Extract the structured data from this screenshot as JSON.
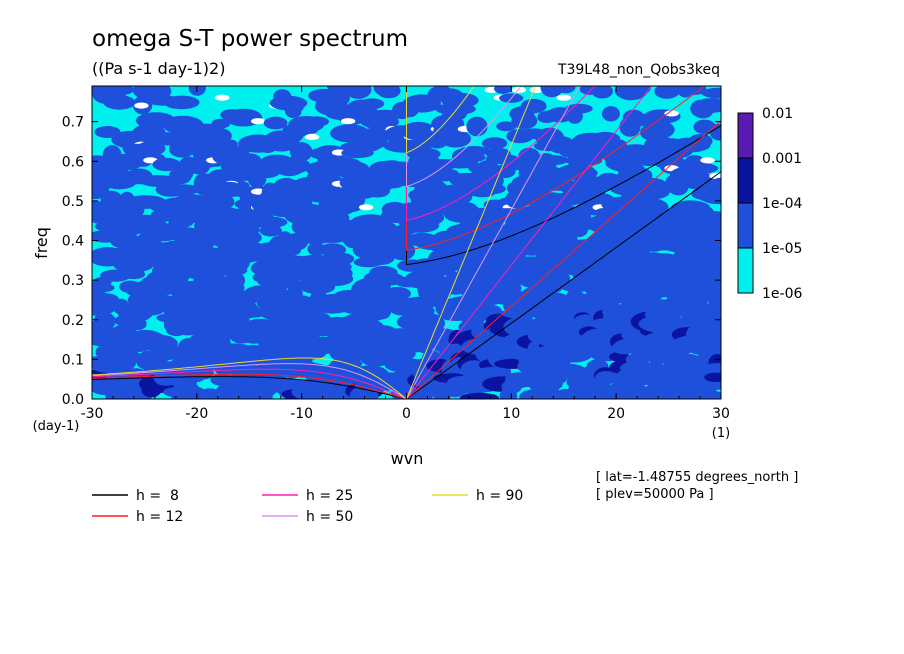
{
  "chart_data": {
    "type": "heatmap",
    "title": "omega S-T power spectrum",
    "subtitle": "((Pa s-1 day-1)2)",
    "run_label": "T39L48_non_Qobs3keq",
    "xlabel": "wvn",
    "ylabel": "freq",
    "x_unit": "(1)",
    "y_unit": "(day-1)",
    "xlim": [
      -30,
      30
    ],
    "ylim": [
      0.0,
      0.79
    ],
    "xticks": [
      -30,
      -20,
      -10,
      0,
      10,
      20,
      30
    ],
    "xtick_labels": [
      "-30",
      "-20",
      "-10",
      "0",
      "10",
      "20",
      "30"
    ],
    "yticks": [
      0.0,
      0.1,
      0.2,
      0.3,
      0.4,
      0.5,
      0.6,
      0.7
    ],
    "ytick_labels": [
      "0.0",
      "0.1",
      "0.2",
      "0.3",
      "0.4",
      "0.5",
      "0.6",
      "0.7"
    ],
    "colorbar": {
      "levels": [
        "0.01",
        "0.001",
        "1e-04",
        "1e-05",
        "1e-06"
      ],
      "colors": [
        "#5a1ab4",
        "#0a14a0",
        "#1e50dc",
        "#00f0f0"
      ]
    },
    "dispersion_curves": [
      {
        "name": "h =  8",
        "h": 8,
        "color": "#000000"
      },
      {
        "name": "h = 12",
        "h": 12,
        "color": "#ff2020"
      },
      {
        "name": "h = 25",
        "h": 25,
        "color": "#ff1eb4"
      },
      {
        "name": "h = 50",
        "h": 50,
        "color": "#dc96f0"
      },
      {
        "name": "h = 90",
        "h": 90,
        "color": "#e6dc32"
      }
    ],
    "info_lines": [
      "[ lat=-1.48755 degrees_north ]",
      "[ plev=50000 Pa ]"
    ]
  }
}
